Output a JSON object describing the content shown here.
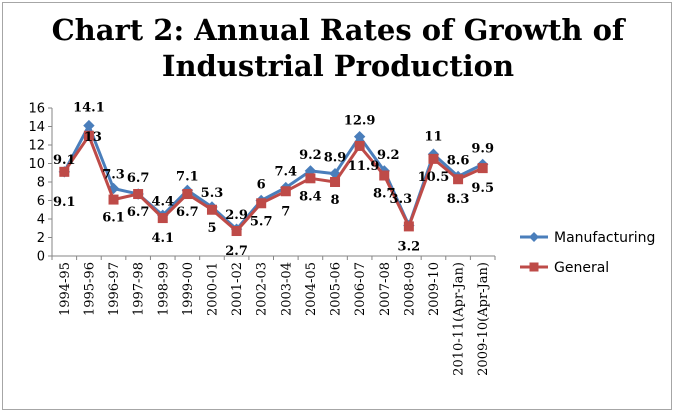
{
  "chart_data": {
    "type": "line",
    "title_line1": "Chart 2: Annual Rates of Growth of",
    "title_line2": "Industrial Production",
    "categories": [
      "1994-95",
      "1995-96",
      "1996-97",
      "1997-98",
      "1998-99",
      "1999-00",
      "2000-01",
      "2001-02",
      "2002-03",
      "2003-04",
      "2004-05",
      "2005-06",
      "2006-07",
      "2007-08",
      "2008-09",
      "2009-10",
      "2010-11(Apr-Jan)",
      "2009-10(Apr-Jan)"
    ],
    "series": [
      {
        "name": "Manufacturing",
        "color": "#4a7ebb",
        "marker": "diamond",
        "values": [
          9.1,
          14.1,
          7.3,
          6.7,
          4.4,
          7.1,
          5.3,
          2.9,
          6,
          7.4,
          9.2,
          8.9,
          12.9,
          9.2,
          3.3,
          11,
          8.6,
          9.9
        ]
      },
      {
        "name": "General",
        "color": "#be4b48",
        "marker": "square",
        "values": [
          9.1,
          13,
          6.1,
          6.7,
          4.1,
          6.7,
          5,
          2.7,
          5.7,
          7,
          8.4,
          8,
          11.9,
          8.7,
          3.2,
          10.5,
          8.3,
          9.5
        ]
      }
    ],
    "yticks": [
      0,
      2,
      4,
      6,
      8,
      10,
      12,
      14,
      16
    ],
    "ylim": [
      0,
      16
    ],
    "xlabel": "",
    "ylabel": "",
    "grid": false,
    "legend": "right",
    "data_labels": true
  }
}
